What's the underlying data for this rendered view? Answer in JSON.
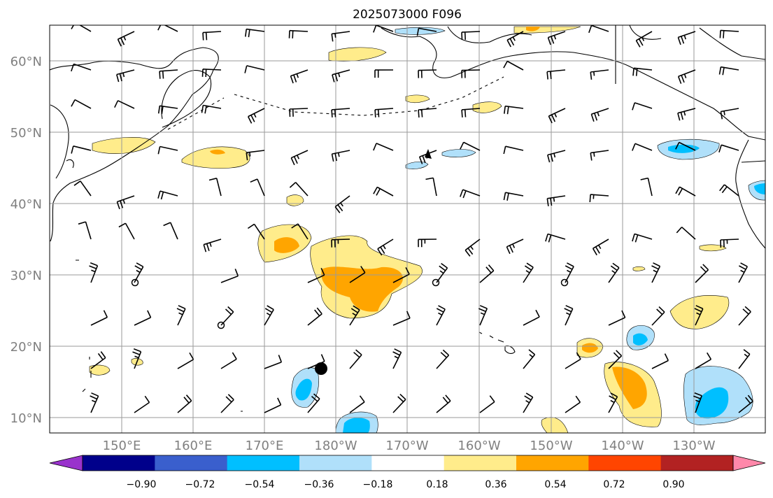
{
  "title": "2025073000 F096",
  "lat_labels": [
    "60°N",
    "50°N",
    "40°N",
    "30°N",
    "20°N",
    "10°N"
  ],
  "lon_labels": [
    "150°E",
    "160°E",
    "170°E",
    "180°W",
    "170°W",
    "160°W",
    "150°W",
    "140°W",
    "130°W"
  ],
  "colorbar": {
    "colors": [
      "#9932cc",
      "#00008b",
      "#3a5fcd",
      "#00bfff",
      "#b0e0fa",
      "#ffffff",
      "#ffec8b",
      "#ffa500",
      "#ff4500",
      "#b22222",
      "#ff88aa"
    ],
    "tick_labels": [
      "−0.90",
      "−0.72",
      "−0.54",
      "−0.36",
      "−0.18",
      "0.18",
      "0.36",
      "0.54",
      "0.72",
      "0.90"
    ]
  },
  "colors": {
    "pos_light": "#ffec8b",
    "pos_mid": "#ffa500",
    "neg_light": "#b0e0fa",
    "neg_mid": "#00bfff"
  },
  "storm_marker": {
    "lat": 17,
    "lon": -178.5,
    "shape": "filled-circle"
  }
}
